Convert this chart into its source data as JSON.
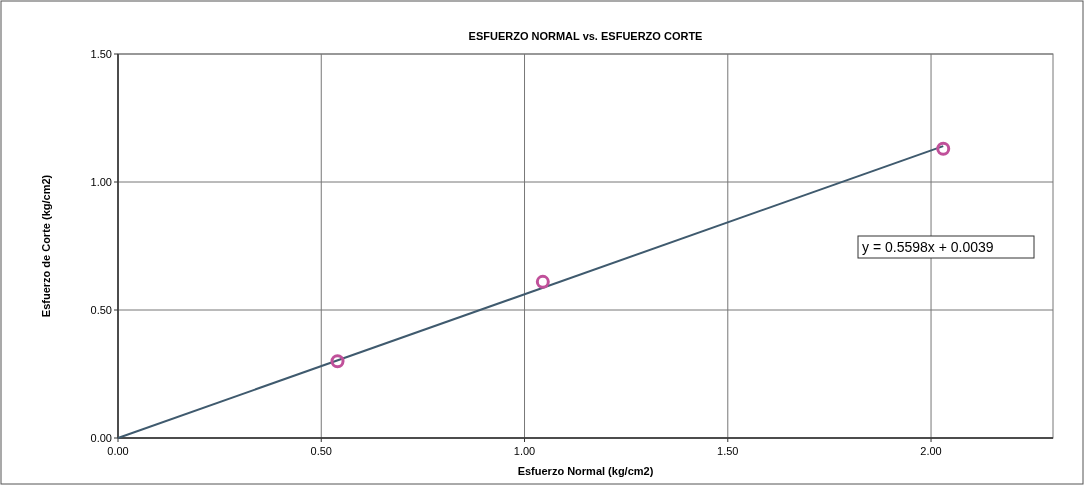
{
  "chart_data": {
    "type": "scatter",
    "title": "ESFUERZO NORMAL vs. ESFUERZO CORTE",
    "xlabel": "Esfuerzo Normal (kg/cm2)",
    "ylabel": "Esfuerzo de Corte (kg/cm2)",
    "xlim": [
      0,
      2.3
    ],
    "ylim": [
      0,
      1.5
    ],
    "xticks": [
      {
        "value": 0,
        "label": "0.00"
      },
      {
        "value": 0.5,
        "label": "0.50"
      },
      {
        "value": 1,
        "label": "1.00"
      },
      {
        "value": 1.5,
        "label": "1.50"
      },
      {
        "value": 2,
        "label": "2.00"
      }
    ],
    "yticks": [
      {
        "value": 0,
        "label": "0.00"
      },
      {
        "value": 0.5,
        "label": "0.50"
      },
      {
        "value": 1,
        "label": "1.00"
      },
      {
        "value": 1.5,
        "label": "1.50"
      }
    ],
    "grid": true,
    "series": [
      {
        "color": "#c0509a",
        "marker": "circle",
        "x": [
          0.54,
          1.045,
          2.03
        ],
        "values": [
          0.3,
          0.61,
          1.13
        ]
      },
      {
        "type": "line",
        "color": "#3f5a6e",
        "marker": "none",
        "x": [
          0,
          2.03
        ],
        "values": [
          0,
          1.14
        ]
      }
    ],
    "annotations": [
      "y = 0.5598x + 0.0039"
    ]
  }
}
